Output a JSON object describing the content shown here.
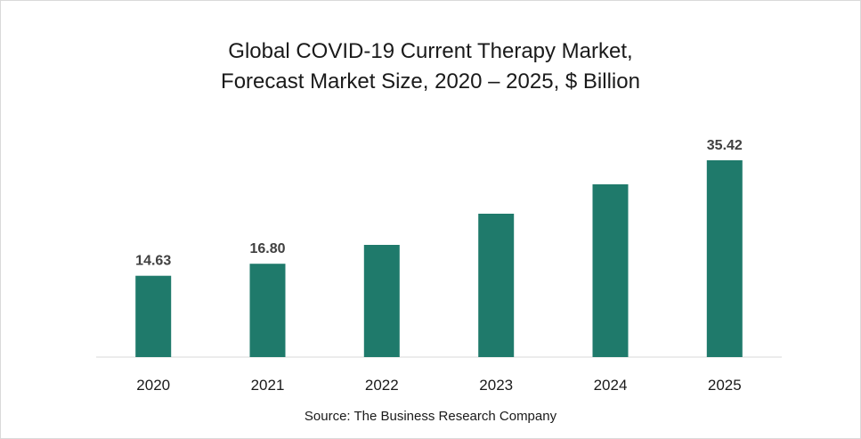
{
  "chart_data": {
    "type": "bar",
    "title_lines": [
      "Global COVID-19 Current Therapy Market,",
      "Forecast Market Size, 2020 – 2025, $ Billion"
    ],
    "categories": [
      "2020",
      "2021",
      "2022",
      "2023",
      "2024",
      "2025"
    ],
    "values": [
      14.63,
      16.8,
      20.2,
      25.8,
      31.1,
      35.42
    ],
    "data_labels": [
      "14.63",
      "16.80",
      "",
      "",
      "",
      "35.42"
    ],
    "xlabel": "",
    "ylabel": "",
    "ylim": [
      0,
      38
    ],
    "grid": false,
    "legend": "none",
    "bar_color": "#1f7a6b"
  },
  "source": "Source: The Business Research Company"
}
